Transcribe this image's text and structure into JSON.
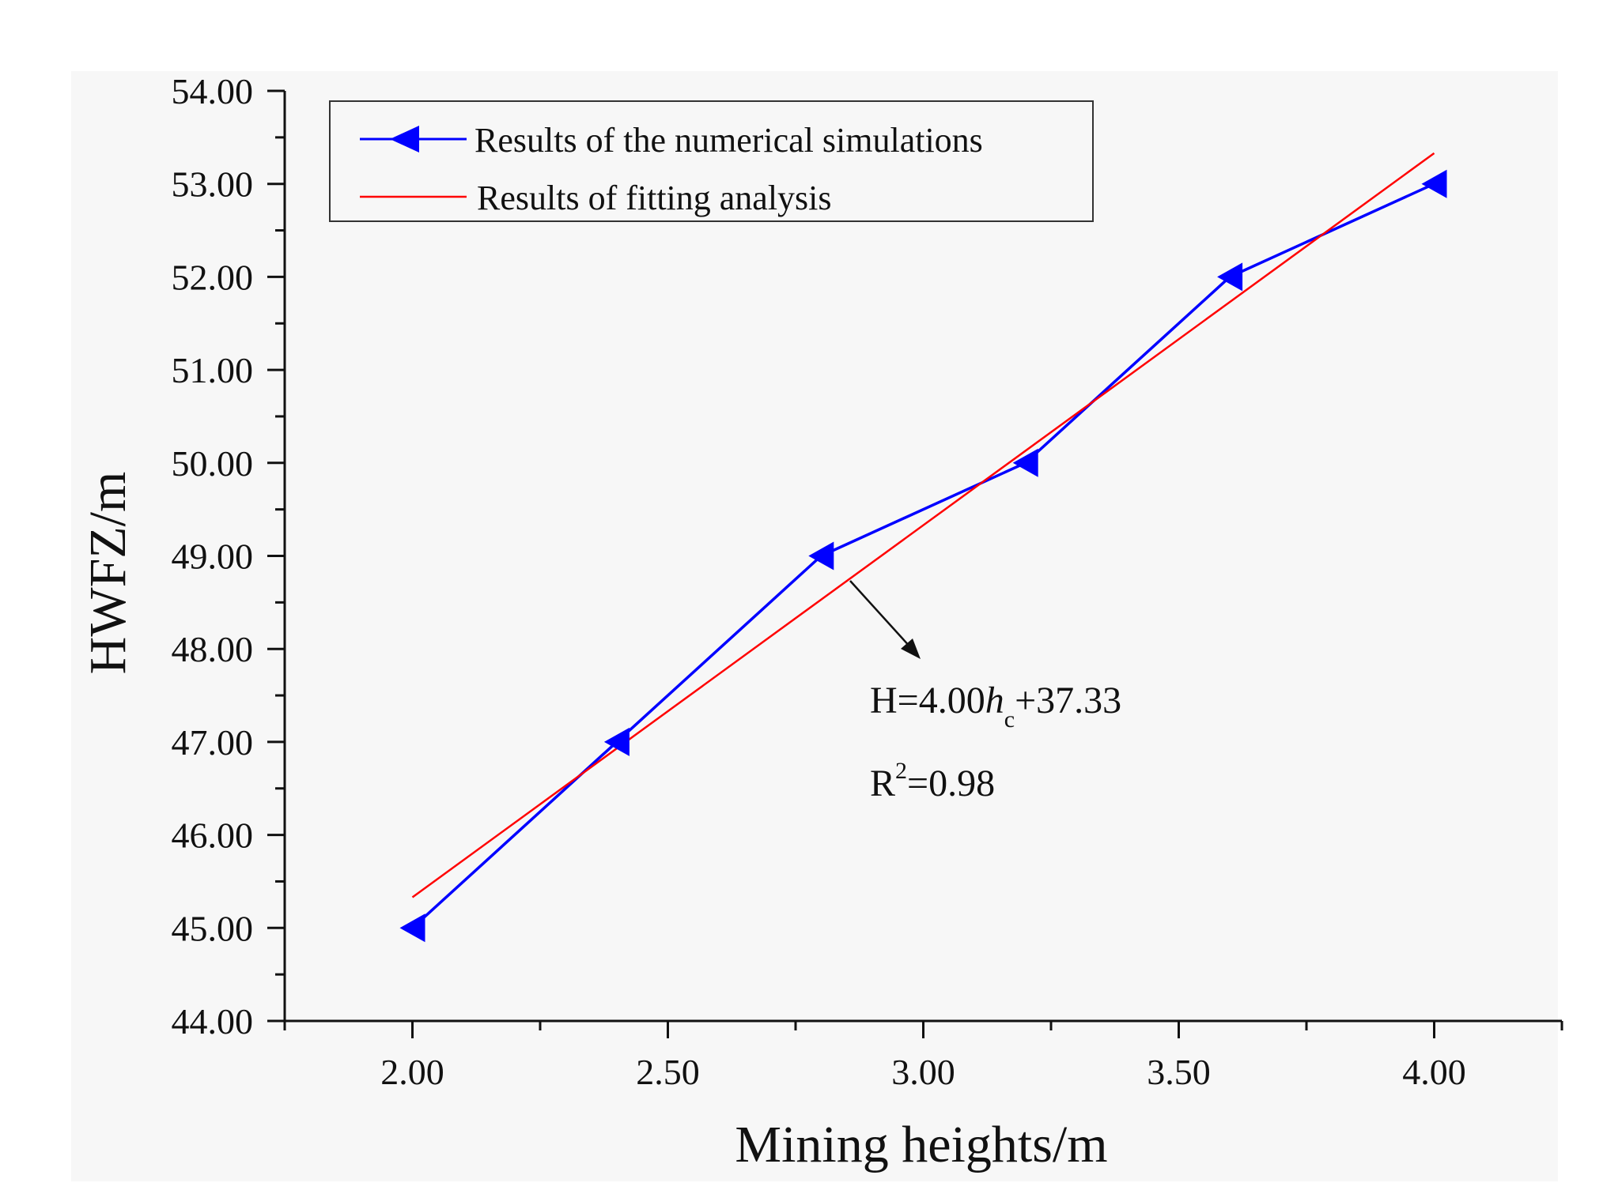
{
  "chart_data": {
    "type": "line",
    "xlabel": "Mining heights/m",
    "ylabel": "HWFZ/m",
    "xlim": [
      1.75,
      4.25
    ],
    "ylim": [
      44.0,
      54.0
    ],
    "x_ticks": [
      "2.00",
      "2.50",
      "3.00",
      "3.50",
      "4.00"
    ],
    "y_ticks": [
      "44.00",
      "45.00",
      "46.00",
      "47.00",
      "48.00",
      "49.00",
      "50.00",
      "51.00",
      "52.00",
      "53.00",
      "54.00"
    ],
    "grid": false,
    "legend_position": "top-left",
    "series": [
      {
        "name": "Results of the numerical simulations",
        "color": "#0000ff",
        "marker": "left-triangle",
        "x": [
          2.0,
          2.4,
          2.8,
          3.2,
          3.6,
          4.0
        ],
        "y": [
          45.0,
          47.0,
          49.0,
          50.0,
          52.0,
          53.0
        ]
      },
      {
        "name": "Results of fitting analysis",
        "color": "#ff0000",
        "marker": "none",
        "x": [
          2.0,
          4.0
        ],
        "y": [
          45.33,
          53.33
        ]
      }
    ],
    "annotations": {
      "equation_main": "H=4.00",
      "equation_var": "h",
      "equation_sub": "c",
      "equation_rest": "+37.33",
      "r2_base": "R",
      "r2_sup": "2",
      "r2_rest": "=0.98"
    }
  }
}
